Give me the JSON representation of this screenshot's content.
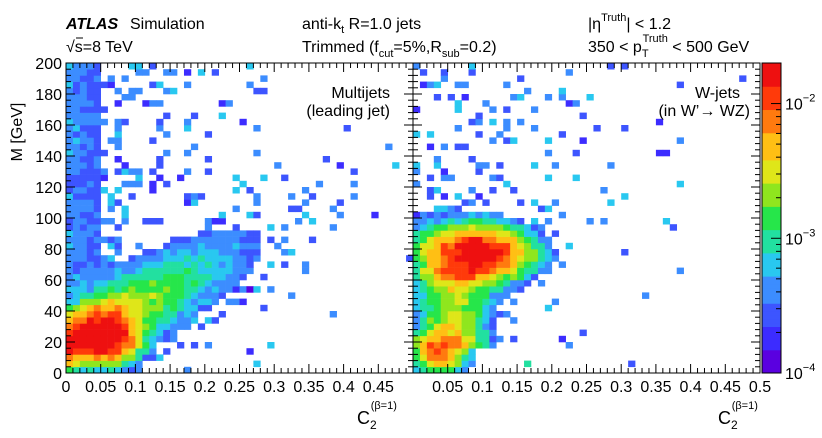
{
  "header": {
    "atlas": "ATLAS",
    "simulation": "Simulation",
    "sqrt_symbol": "√",
    "energy": "s=8 TeV",
    "jet_algo_pre": "anti-k",
    "jet_algo_sub": "t",
    "jet_algo_post": " R=1.0 jets",
    "trim_pre": "Trimmed (f",
    "trim_cut_sub": "cut",
    "trim_mid": "=5%,R",
    "trim_rsub_sub": "sub",
    "trim_post": "=0.2)",
    "eta_pre": "|η",
    "eta_sup": "Truth",
    "eta_post": "| < 1.2",
    "pt_pre": "350 < p",
    "pt_sub": "T",
    "pt_sup": "Truth",
    "pt_post": " < 500 GeV"
  },
  "colors": {
    "palette": [
      "#5a00e0",
      "#3c2cff",
      "#3d55ff",
      "#3c8dff",
      "#29c8f0",
      "#22e0a0",
      "#26e64a",
      "#8fe61e",
      "#dfe619",
      "#ffbf14",
      "#ff7a0f",
      "#ff3a0a",
      "#ee1010"
    ]
  },
  "chart_data": [
    {
      "type": "heatmap",
      "name": "Multijets (leading jet)",
      "label_line1": "Multijets",
      "label_line2": "(leading jet)",
      "xlabel_main": "C",
      "xlabel_sub": "2",
      "xlabel_sup": "(β=1)",
      "ylabel": "M [GeV]",
      "xlim": [
        0,
        0.5
      ],
      "ylim": [
        0,
        200
      ],
      "x_ticks": [
        "0",
        "0.05",
        "0.1",
        "0.15",
        "0.2",
        "0.25",
        "0.3",
        "0.35",
        "0.4",
        "0.45"
      ],
      "x_tick_values": [
        0,
        0.05,
        0.1,
        0.15,
        0.2,
        0.25,
        0.3,
        0.35,
        0.4,
        0.45
      ],
      "y_ticks": [
        "0",
        "20",
        "40",
        "60",
        "80",
        "100",
        "120",
        "140",
        "160",
        "180",
        "200"
      ],
      "y_tick_values": [
        0,
        20,
        40,
        60,
        80,
        100,
        120,
        140,
        160,
        180,
        200
      ],
      "bins": {
        "nx": 50,
        "ny": 50,
        "x_bin_width": 0.01,
        "y_bin_width": 4
      },
      "peak_density": {
        "c2": 0.06,
        "mass_gev": 22
      },
      "ridge": "mass rises roughly linearly with C2 (M ≈ 20 + 220·C2 GeV), broad sparse tail up to 200 GeV"
    },
    {
      "type": "heatmap",
      "name": "W-jets (in W'→ WZ)",
      "label_line1": "W-jets",
      "label_line2": "(in W’→ WZ)",
      "xlabel_main": "C",
      "xlabel_sub": "2",
      "xlabel_sup": "(β=1)",
      "xlim": [
        0,
        0.5
      ],
      "ylim": [
        0,
        200
      ],
      "x_ticks": [
        "0.05",
        "0.1",
        "0.15",
        "0.2",
        "0.25",
        "0.3",
        "0.35",
        "0.4",
        "0.45",
        "0.5"
      ],
      "x_tick_values": [
        0.05,
        0.1,
        0.15,
        0.2,
        0.25,
        0.3,
        0.35,
        0.4,
        0.45,
        0.5
      ],
      "bins": {
        "nx": 50,
        "ny": 50,
        "x_bin_width": 0.01,
        "y_bin_width": 4
      },
      "peak_density": {
        "c2": 0.085,
        "mass_gev": 78
      },
      "secondary_band": "low-mass band near 10–20 GeV at C2 ≈ 0.02–0.08"
    }
  ],
  "colorbar": {
    "scale": "log",
    "zlim": [
      0.0001,
      0.02
    ],
    "ticks": [
      {
        "base": "10",
        "exp": "−2",
        "value": 0.01
      },
      {
        "base": "10",
        "exp": "−3",
        "value": 0.001
      },
      {
        "base": "10",
        "exp": "−4",
        "value": 0.0001
      }
    ]
  }
}
